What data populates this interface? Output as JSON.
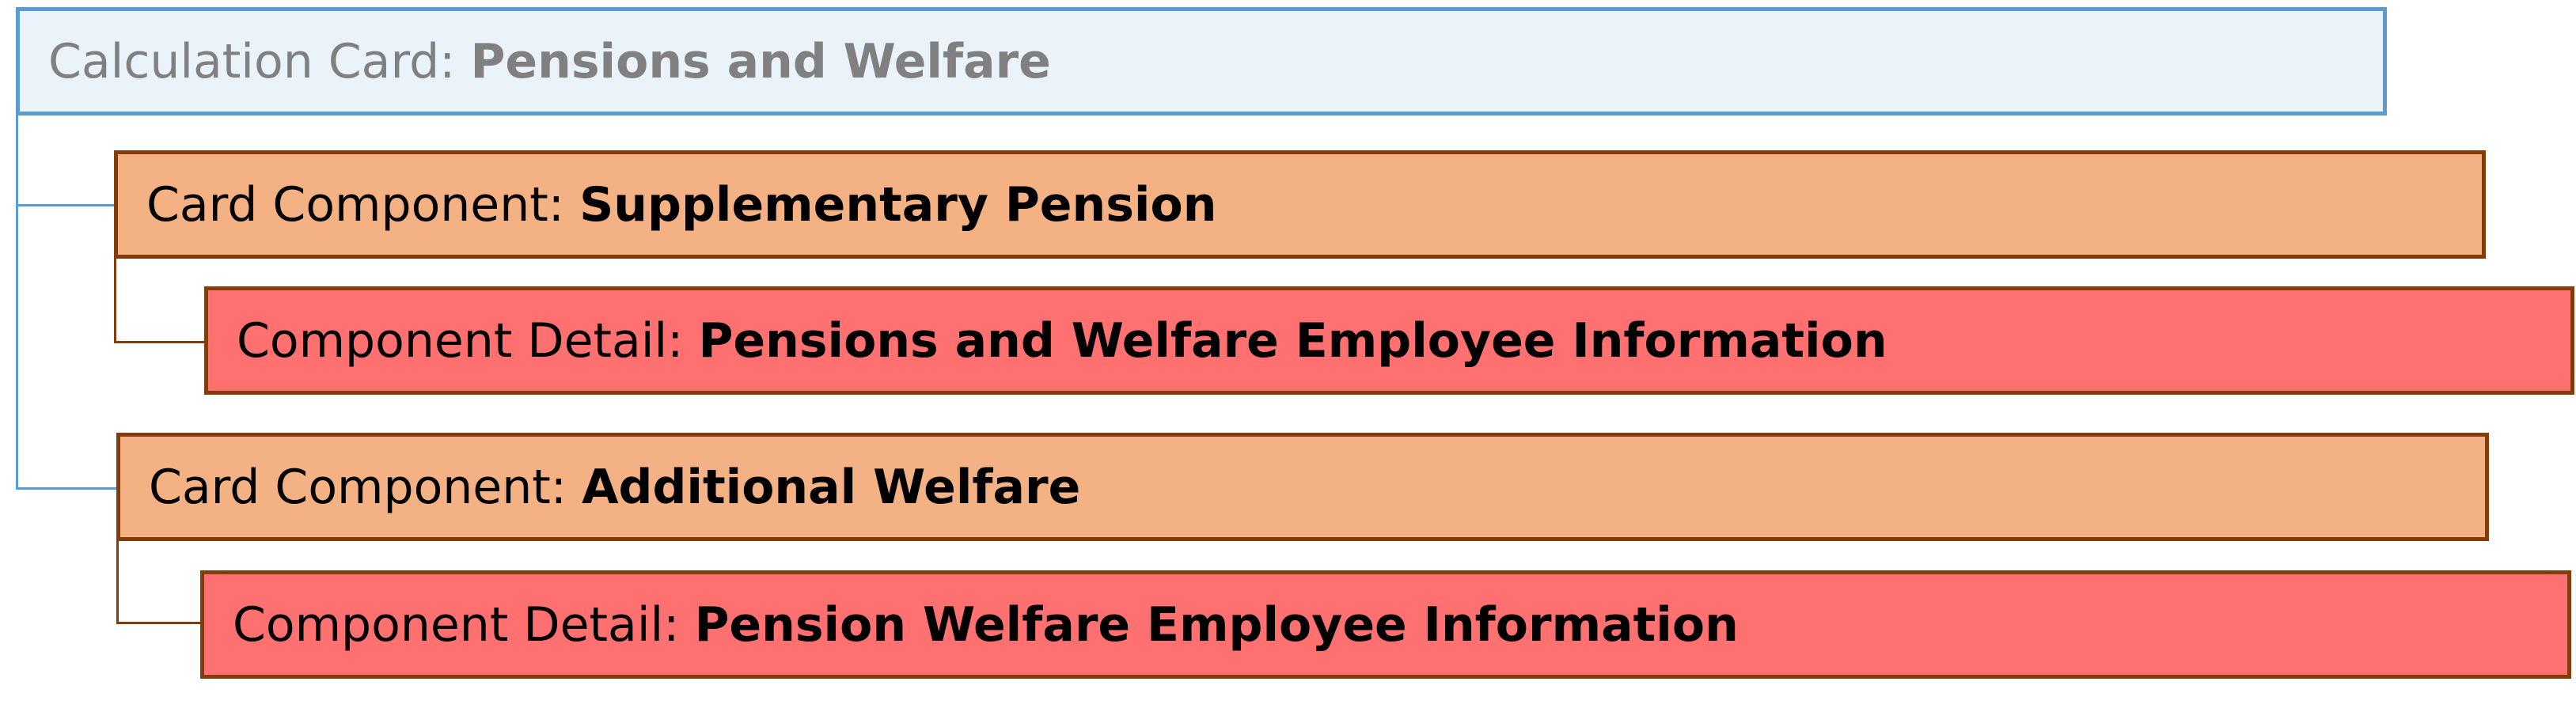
{
  "colors": {
    "card_fill": "#eaf2fa",
    "card_border": "#5b9bd5",
    "component_fill": "#f4b183",
    "detail_fill": "#ff7070",
    "component_border": "#843c0c"
  },
  "card": {
    "prefix": "Calculation Card: ",
    "name": "Pensions and Welfare"
  },
  "components": [
    {
      "prefix": "Card Component: ",
      "name": "Supplementary Pension",
      "detail": {
        "prefix": "Component Detail: ",
        "name": "Pensions and Welfare Employee Information"
      }
    },
    {
      "prefix": "Card Component: ",
      "name": "Additional Welfare",
      "detail": {
        "prefix": "Component Detail: ",
        "name": "Pension Welfare Employee Information"
      }
    }
  ]
}
